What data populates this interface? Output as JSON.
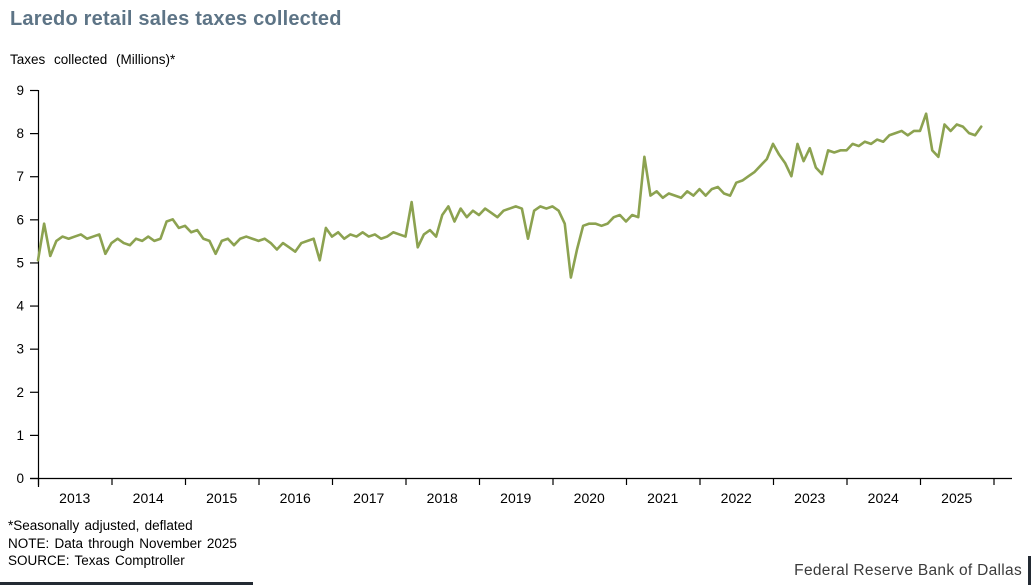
{
  "header": {
    "title": "Laredo retail sales taxes collected",
    "y_axis_title": "Taxes collected (Millions)*"
  },
  "footer": {
    "footnote_adjusted": "*Seasonally adjusted, deflated",
    "footnote_note": "NOTE: Data through November 2025",
    "footnote_source": "SOURCE: Texas Comptroller",
    "brand": "Federal Reserve Bank of Dallas"
  },
  "colors": {
    "line": "#8CA250",
    "title": "#5d7486",
    "axis": "#000000",
    "brand_accent": "#232a33"
  },
  "chart_data": {
    "type": "line",
    "title": "Laredo retail sales taxes collected",
    "ylabel": "Taxes collected (Millions)*",
    "xlabel": "",
    "ylim": [
      0,
      9
    ],
    "y_ticks": [
      0,
      1,
      2,
      3,
      4,
      5,
      6,
      7,
      8,
      9
    ],
    "x_tick_years": [
      2013,
      2014,
      2015,
      2016,
      2017,
      2018,
      2019,
      2020,
      2021,
      2022,
      2023,
      2024,
      2025
    ],
    "frequency": "monthly",
    "start": "2013-01",
    "end": "2025-11",
    "grid": false,
    "legend_position": "none",
    "line_color": "#8CA250",
    "series": [
      {
        "name": "Laredo retail sales taxes collected (millions, seasonally adjusted, deflated)",
        "values": [
          5.05,
          5.9,
          5.15,
          5.5,
          5.6,
          5.55,
          5.6,
          5.65,
          5.55,
          5.6,
          5.65,
          5.2,
          5.45,
          5.55,
          5.45,
          5.4,
          5.55,
          5.5,
          5.6,
          5.5,
          5.55,
          5.95,
          6.0,
          5.8,
          5.85,
          5.7,
          5.75,
          5.55,
          5.5,
          5.2,
          5.5,
          5.55,
          5.4,
          5.55,
          5.6,
          5.55,
          5.5,
          5.55,
          5.45,
          5.3,
          5.45,
          5.35,
          5.25,
          5.45,
          5.5,
          5.55,
          5.05,
          5.8,
          5.6,
          5.7,
          5.55,
          5.65,
          5.6,
          5.7,
          5.6,
          5.65,
          5.55,
          5.6,
          5.7,
          5.65,
          5.6,
          6.4,
          5.35,
          5.65,
          5.75,
          5.6,
          6.1,
          6.3,
          5.95,
          6.25,
          6.05,
          6.2,
          6.1,
          6.25,
          6.15,
          6.05,
          6.2,
          6.25,
          6.3,
          6.25,
          5.55,
          6.2,
          6.3,
          6.25,
          6.3,
          6.2,
          5.9,
          4.65,
          5.3,
          5.85,
          5.9,
          5.9,
          5.85,
          5.9,
          6.05,
          6.1,
          5.95,
          6.1,
          6.05,
          7.45,
          6.55,
          6.65,
          6.5,
          6.6,
          6.55,
          6.5,
          6.65,
          6.55,
          6.7,
          6.55,
          6.7,
          6.75,
          6.6,
          6.55,
          6.85,
          6.9,
          7.0,
          7.1,
          7.25,
          7.4,
          7.75,
          7.5,
          7.3,
          7.0,
          7.75,
          7.35,
          7.65,
          7.2,
          7.05,
          7.6,
          7.55,
          7.6,
          7.6,
          7.75,
          7.7,
          7.8,
          7.75,
          7.85,
          7.8,
          7.95,
          8.0,
          8.05,
          7.95,
          8.05,
          8.05,
          8.45,
          7.6,
          7.45,
          8.2,
          8.05,
          8.2,
          8.15,
          8.0,
          7.95,
          8.15
        ]
      }
    ]
  }
}
